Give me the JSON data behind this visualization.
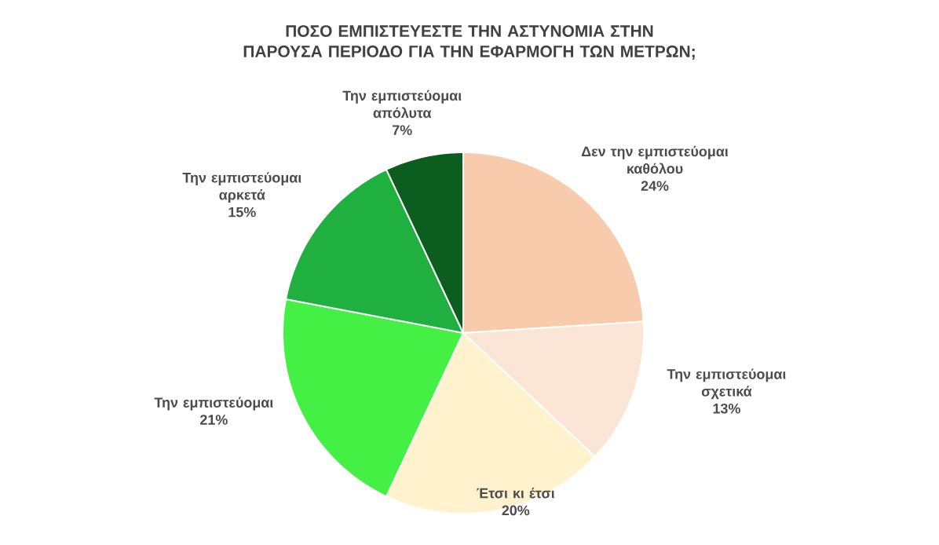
{
  "chart_data": {
    "type": "pie",
    "title": "ΠΟΣΟ ΕΜΠΙΣΤΕΥΕΣΤΕ ΤΗΝ ΑΣΤΥΝΟΜΙΑ ΣΤΗΝ ΠΑΡΟΥΣΑ ΠΕΡΙΟΔΟ ΓΙΑ ΤΗΝ ΕΦΑΡΜΟΓΗ ΤΩΝ ΜΕΤΡΩΝ;",
    "categories": [
      "Δεν την εμπιστεύομαι καθόλου",
      "Την εμπιστεύομαι σχετικά",
      "Έτσι κι έτσι",
      "Την εμπιστεύομαι",
      "Την εμπιστεύομαι αρκετά",
      "Την εμπιστεύομαι απόλυτα"
    ],
    "values": [
      24,
      13,
      20,
      21,
      15,
      7
    ],
    "value_labels": [
      "24%",
      "13%",
      "20%",
      "21%",
      "15%",
      "7%"
    ],
    "colors": [
      "#f8cbad",
      "#fbe5d6",
      "#fff2cc",
      "#43f043",
      "#1fb040",
      "#0b5e1e"
    ]
  }
}
